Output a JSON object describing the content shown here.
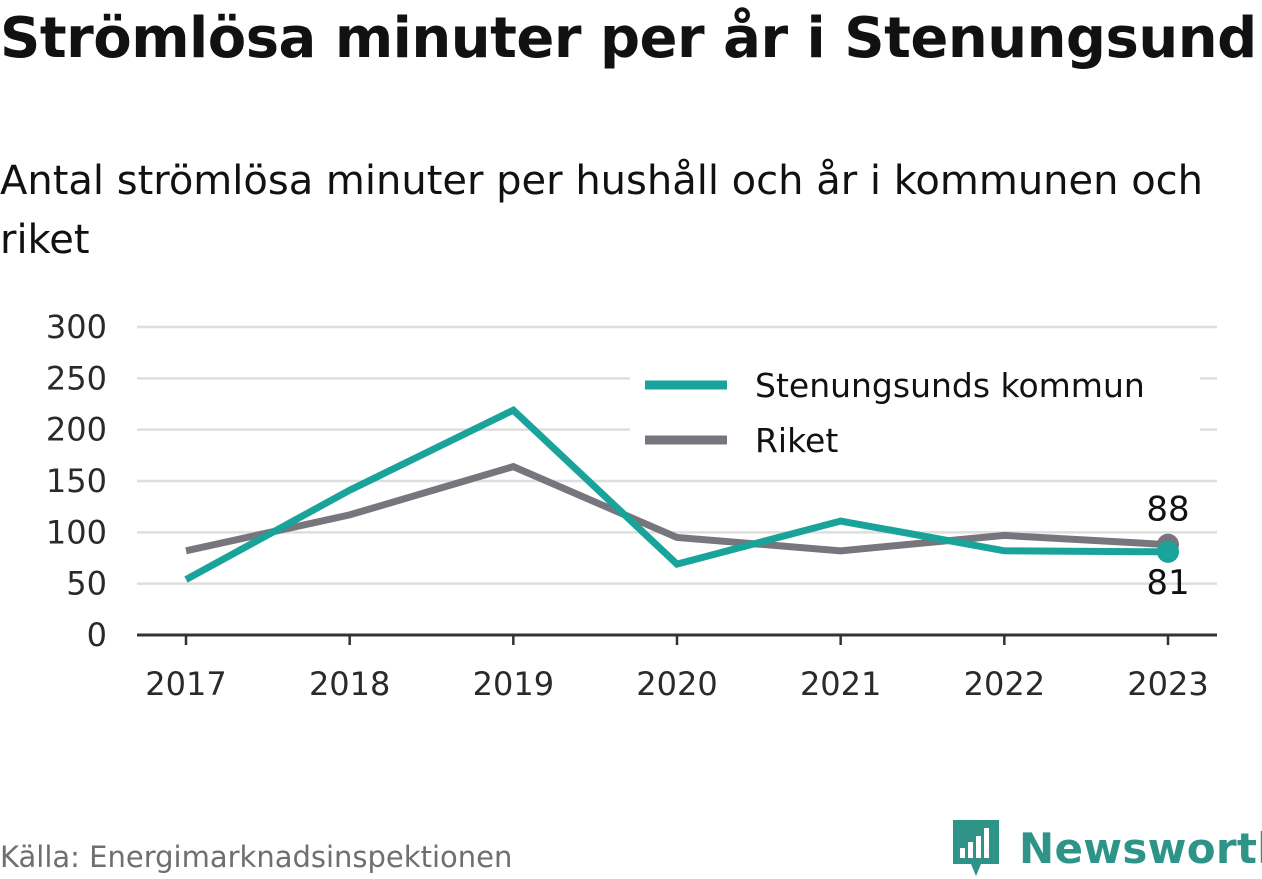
{
  "title": "Strömlösa minuter per år i Stenungsund",
  "subtitle": "Antal strömlösa minuter per hushåll och år i kommunen och riket",
  "source": "Källa: Energimarknadsinspektionen",
  "brand": "Newsworthy",
  "colors": {
    "kommun": "#1aa39a",
    "riket": "#77767d",
    "grid": "#dedede",
    "axis": "#333333",
    "brand": "#2f9488"
  },
  "chart_data": {
    "type": "line",
    "x": [
      "2017",
      "2018",
      "2019",
      "2020",
      "2021",
      "2022",
      "2023"
    ],
    "ylim": [
      0,
      300
    ],
    "yticks": [
      0,
      50,
      100,
      150,
      200,
      250,
      300
    ],
    "grid": true,
    "legend": "top-right",
    "series": [
      {
        "name": "Stenungsunds kommun",
        "values": [
          54,
          141,
          219,
          69,
          111,
          82,
          81
        ],
        "end_label": "81"
      },
      {
        "name": "Riket",
        "values": [
          82,
          117,
          164,
          95,
          82,
          97,
          88
        ],
        "end_label": "88"
      }
    ]
  }
}
